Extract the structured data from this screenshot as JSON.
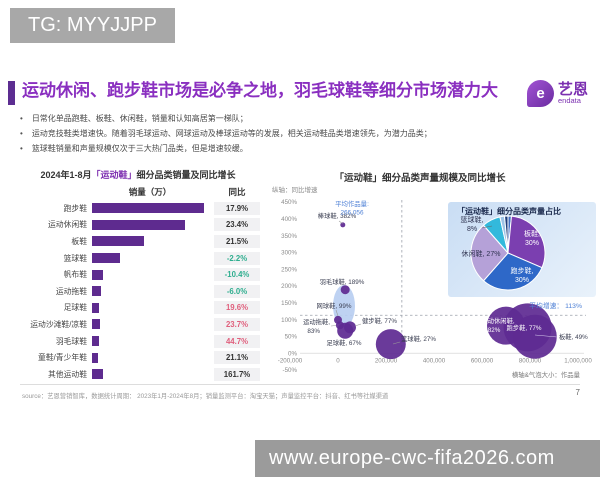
{
  "top_tag": "TG: MYYJJPP",
  "page": {
    "title": "运动休闲、跑步鞋市场是必争之地，羽毛球鞋等细分市场潜力大",
    "logo_text": "艺恩",
    "logo_sub": "endata",
    "bullets": [
      "日常化单品跑鞋、板鞋、休闲鞋，销量和认知高居第一梯队；",
      "运动竞技鞋类增速快。随着羽毛球运动、网球运动及棒球运动等的发展，相关运动鞋品类增速领先，为潜力品类；",
      "篮球鞋销量和声量规模仅次于三大热门品类，但是增速较缓。"
    ],
    "footer_source": "source：艺恩营销智库，数据统计周期： 2023年1月-2024年8月；销量监测平台：淘宝天猫；声量监控平台：抖音、红书等社媒渠道",
    "page_number": "7",
    "watermark": "www.europe-cwc-fifa2026.com"
  },
  "chart_data": [
    {
      "type": "bar",
      "title_prefix": "2024年1-8月",
      "title_highlight": "「运动鞋」",
      "title_suffix": "细分品类销量及同比增长",
      "columns": {
        "value": "销量（万）",
        "yoy": "同比"
      },
      "bar_color": "#5e2b8f",
      "tone_colors": {
        "dark": "#333333",
        "green": "#2fae8f",
        "red": "#e0607d"
      },
      "rows": [
        {
          "label": "跑步鞋",
          "bar_pct": 100,
          "yoy": "17.9%",
          "tone": "dark"
        },
        {
          "label": "运动休闲鞋",
          "bar_pct": 83,
          "yoy": "23.4%",
          "tone": "dark"
        },
        {
          "label": "板鞋",
          "bar_pct": 46,
          "yoy": "21.5%",
          "tone": "dark"
        },
        {
          "label": "篮球鞋",
          "bar_pct": 25,
          "yoy": "-2.2%",
          "tone": "green"
        },
        {
          "label": "帆布鞋",
          "bar_pct": 10,
          "yoy": "-10.4%",
          "tone": "green"
        },
        {
          "label": "运动拖鞋",
          "bar_pct": 8,
          "yoy": "-6.0%",
          "tone": "green"
        },
        {
          "label": "足球鞋",
          "bar_pct": 6,
          "yoy": "19.6%",
          "tone": "red"
        },
        {
          "label": "运动沙滩鞋/凉鞋",
          "bar_pct": 7,
          "yoy": "23.7%",
          "tone": "red"
        },
        {
          "label": "羽毛球鞋",
          "bar_pct": 6,
          "yoy": "44.7%",
          "tone": "red"
        },
        {
          "label": "童鞋/青少年鞋",
          "bar_pct": 5,
          "yoy": "21.1%",
          "tone": "dark"
        },
        {
          "label": "其他运动鞋",
          "bar_pct": 10,
          "yoy": "161.7%",
          "tone": "dark"
        }
      ]
    },
    {
      "type": "scatter",
      "title": "「运动鞋」细分品类声量规模及同比增长",
      "y_axis_note": "纵轴：同比增速",
      "x_axis_note": "横轴&气泡大小：作品量",
      "ylim": [
        -50,
        450
      ],
      "xlim": [
        -200000,
        1000000
      ],
      "y_ticks": [
        "450%",
        "400%",
        "350%",
        "300%",
        "250%",
        "200%",
        "150%",
        "100%",
        "50%",
        "0%",
        "-50%"
      ],
      "x_ticks": [
        "-200,000",
        "0",
        "200,000",
        "400,000",
        "600,000",
        "800,000",
        "1,000,000"
      ],
      "avg_x": {
        "value": 266056,
        "label_1": "平均作品量:",
        "label_2": "266,056"
      },
      "avg_y": {
        "value": 113,
        "label": "平均增速： 113%"
      },
      "bubble_color": "#5f2b92",
      "points": [
        {
          "name": "棒球鞋",
          "x": 20000,
          "y": 382,
          "r": 2.5,
          "labels": [
            {
              "t": "棒球鞋, 382%",
              "x": 67,
              "y": 22,
              "a": "middle",
              "c": "#3b3f52"
            }
          ],
          "leader": [
            69,
            25,
            72.5,
            27.5
          ]
        },
        {
          "name": "羽毛球鞋",
          "x": 30000,
          "y": 189,
          "r": 4.5,
          "labels": [
            {
              "t": "羽毛球鞋, 189%",
              "x": 72,
              "y": 88,
              "a": "middle",
              "c": "#3b3f52"
            }
          ]
        },
        {
          "name": "网球鞋",
          "x": 0,
          "y": 99,
          "r": 4,
          "labels": [
            {
              "t": "网球鞋, 99%",
              "x": 64,
              "y": 112,
              "a": "middle",
              "c": "#3b3f52"
            }
          ],
          "leader": [
            66,
            114,
            68,
            120
          ]
        },
        {
          "name": "运动拖鞋",
          "x": 8000,
          "y": 83,
          "r": 4,
          "labels": [
            {
              "t": "运动拖鞋,",
              "x": 60,
              "y": 128,
              "a": "end",
              "c": "#3b3f52"
            },
            {
              "t": "83%",
              "x": 50,
              "y": 137,
              "a": "end",
              "c": "#3b3f52"
            }
          ],
          "leader": [
            61,
            130,
            66,
            129.5
          ]
        },
        {
          "name": "健步鞋",
          "x": 50000,
          "y": 77,
          "r": 6,
          "labels": [
            {
              "t": "健步鞋, 77%",
              "x": 92,
              "y": 127,
              "a": "start",
              "c": "#3b3f52"
            }
          ],
          "leader": [
            91,
            128,
            85,
            130
          ]
        },
        {
          "name": "足球鞋",
          "x": 30000,
          "y": 67,
          "r": 8,
          "labels": [
            {
              "t": "足球鞋, 67%",
              "x": 74,
              "y": 149,
              "a": "middle",
              "c": "#3b3f52"
            }
          ]
        },
        {
          "name": "篮球鞋",
          "x": 220000,
          "y": 27,
          "r": 15,
          "labels": [
            {
              "t": "篮球鞋, 27%",
              "x": 131,
              "y": 145,
              "a": "start",
              "c": "#3b3f52"
            }
          ],
          "leader": [
            130,
            146,
            123,
            148
          ]
        },
        {
          "name": "运动休闲鞋",
          "x": 700000,
          "y": 82,
          "r": 19,
          "labels": [
            {
              "t": "运动休闲鞋,",
              "x": 228,
              "y": 127,
              "a": "middle",
              "c": "#ffffff"
            },
            {
              "t": "82%",
              "x": 224,
              "y": 136,
              "a": "middle",
              "c": "#ffffff"
            }
          ]
        },
        {
          "name": "跑步鞋",
          "x": 790000,
          "y": 77,
          "r": 24,
          "labels": [
            {
              "t": "跑步鞋, 77%",
              "x": 254,
              "y": 134,
              "a": "middle",
              "c": "#ffffff"
            }
          ]
        },
        {
          "name": "板鞋",
          "x": 820000,
          "y": 49,
          "r": 22,
          "labels": [
            {
              "t": "板鞋, 49%",
              "x": 289,
              "y": 143,
              "a": "start",
              "c": "#3b3f52"
            }
          ],
          "leader": [
            265,
            139,
            287,
            141
          ],
          "lc": "#d8cdee"
        }
      ]
    },
    {
      "type": "pie",
      "title": "「运动鞋」细分品类声量占比",
      "slices": [
        {
          "label": "",
          "value": 1.5,
          "color": "#4472c4"
        },
        {
          "label": "板鞋",
          "value": 30,
          "color": "#7b3fb0",
          "lines": [
            "板鞋,",
            "30%"
          ],
          "tx": 84,
          "ty": 34,
          "tc": "#ffffff"
        },
        {
          "label": "跑步鞋",
          "value": 30,
          "color": "#2e68c8",
          "lines": [
            "跑步鞋,",
            "30%"
          ],
          "tx": 74,
          "ty": 71,
          "tc": "#ffffff"
        },
        {
          "label": "休闲鞋",
          "value": 27,
          "color": "#b5a1d8",
          "lines": [
            "休闲鞋, 27%"
          ],
          "tx": 33,
          "ty": 54,
          "tc": "#2f3350"
        },
        {
          "label": "篮球鞋",
          "value": 8,
          "color": "#33b9dc",
          "lines": [
            "篮球鞋,",
            "8%"
          ],
          "tx": 24,
          "ty": 20,
          "tc": "#2f3350",
          "leader": [
            34,
            26,
            44,
            24
          ]
        },
        {
          "label": "",
          "value": 2,
          "color": "#9dc3e6"
        },
        {
          "label": "",
          "value": 1.5,
          "color": "#1f3d7a"
        }
      ]
    }
  ]
}
